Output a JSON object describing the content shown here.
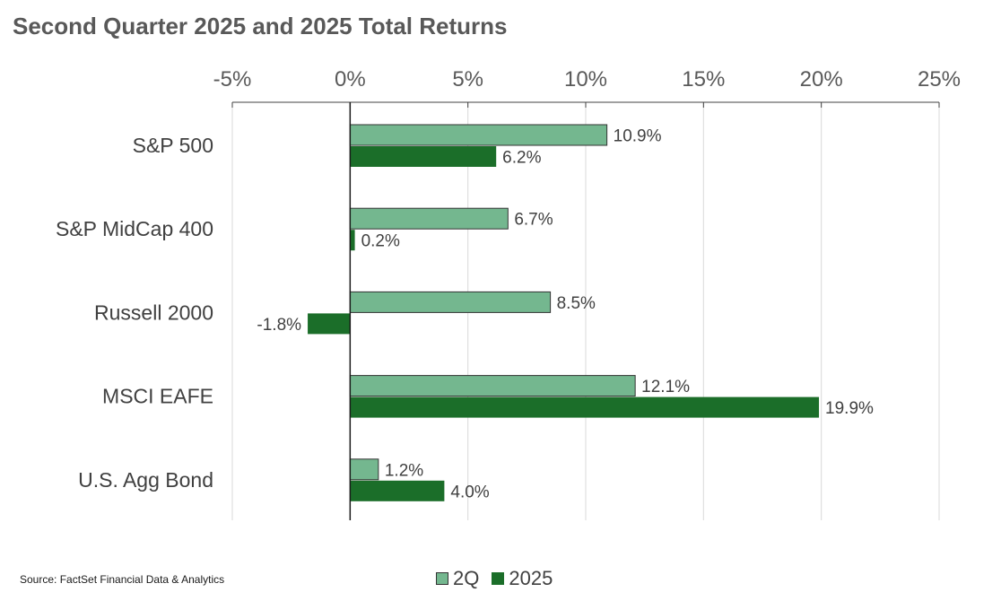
{
  "title": "Second Quarter 2025 and 2025 Total Returns",
  "source": "Source: FactSet Financial Data & Analytics",
  "colors": {
    "2Q": "#74b78f",
    "2025": "#1b6e29",
    "axis": "#404040",
    "grid": "#d9d9d9"
  },
  "chart_data": {
    "type": "bar",
    "orientation": "horizontal",
    "title": "Second Quarter 2025 and 2025 Total Returns",
    "categories": [
      "S&P 500",
      "S&P MidCap 400",
      "Russell 2000",
      "MSCI EAFE",
      "U.S. Agg Bond"
    ],
    "series": [
      {
        "name": "2Q",
        "values": [
          10.9,
          6.7,
          8.5,
          12.1,
          1.2
        ],
        "labels": [
          "10.9%",
          "6.7%",
          "8.5%",
          "12.1%",
          "1.2%"
        ]
      },
      {
        "name": "2025",
        "values": [
          6.2,
          0.2,
          -1.8,
          19.9,
          4.0
        ],
        "labels": [
          "6.2%",
          "0.2%",
          "-1.8%",
          "19.9%",
          "4.0%"
        ]
      }
    ],
    "xlim": [
      -5,
      25
    ],
    "xticks": [
      -5,
      0,
      5,
      10,
      15,
      20,
      25
    ],
    "xtick_labels": [
      "-5%",
      "0%",
      "5%",
      "10%",
      "15%",
      "20%",
      "25%"
    ],
    "x_axis_position": "top",
    "grid": true,
    "legend_position": "bottom"
  }
}
